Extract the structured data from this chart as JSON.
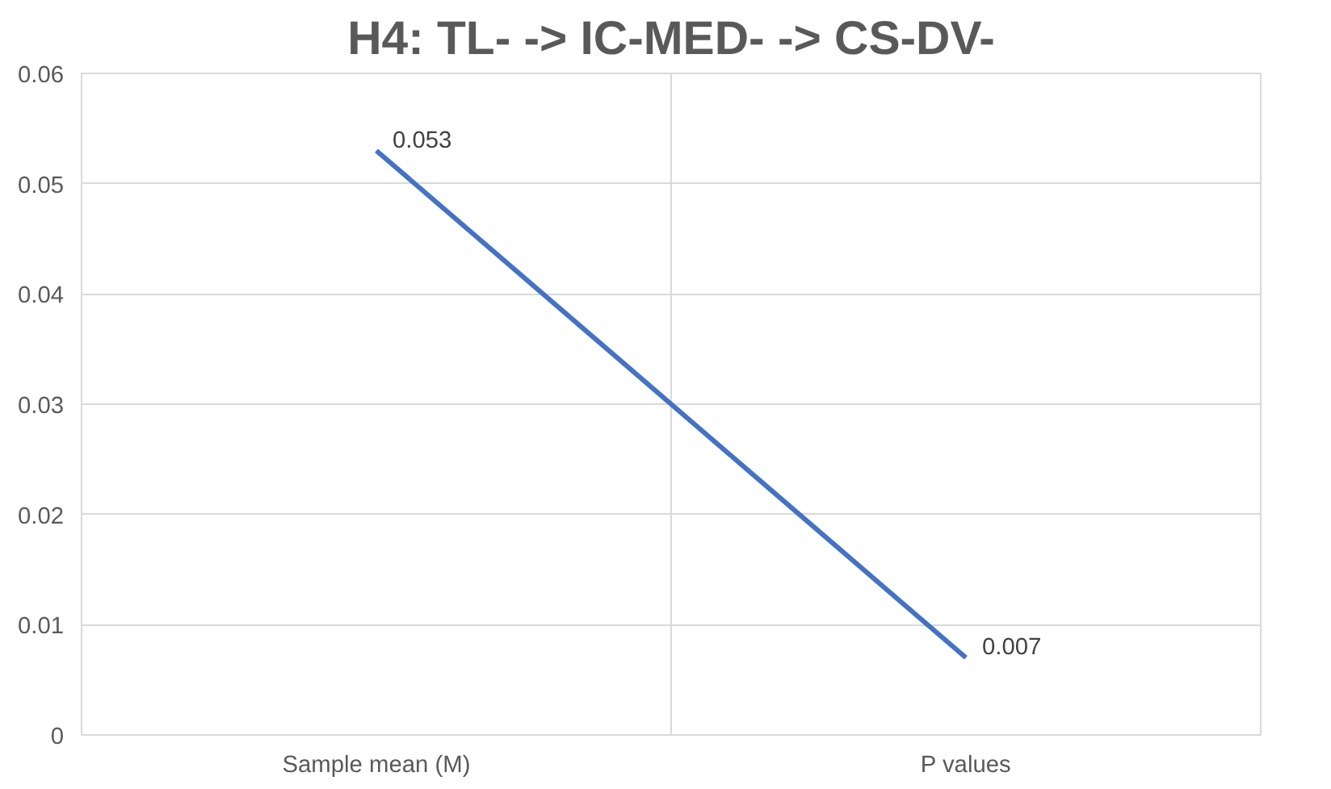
{
  "chart_data": {
    "type": "line",
    "title": "H4: TL- -> IC-MED- -> CS-DV-",
    "categories": [
      "Sample mean (M)",
      "P values"
    ],
    "series": [
      {
        "color": "#4472c4",
        "values": [
          0.053,
          0.007
        ]
      }
    ],
    "ylim": [
      0,
      0.06
    ],
    "yticks": [
      0,
      0.01,
      0.02,
      0.03,
      0.04,
      0.05,
      0.06
    ],
    "grid": true,
    "data_labels": true,
    "marker": "none",
    "line_style": "solid"
  }
}
